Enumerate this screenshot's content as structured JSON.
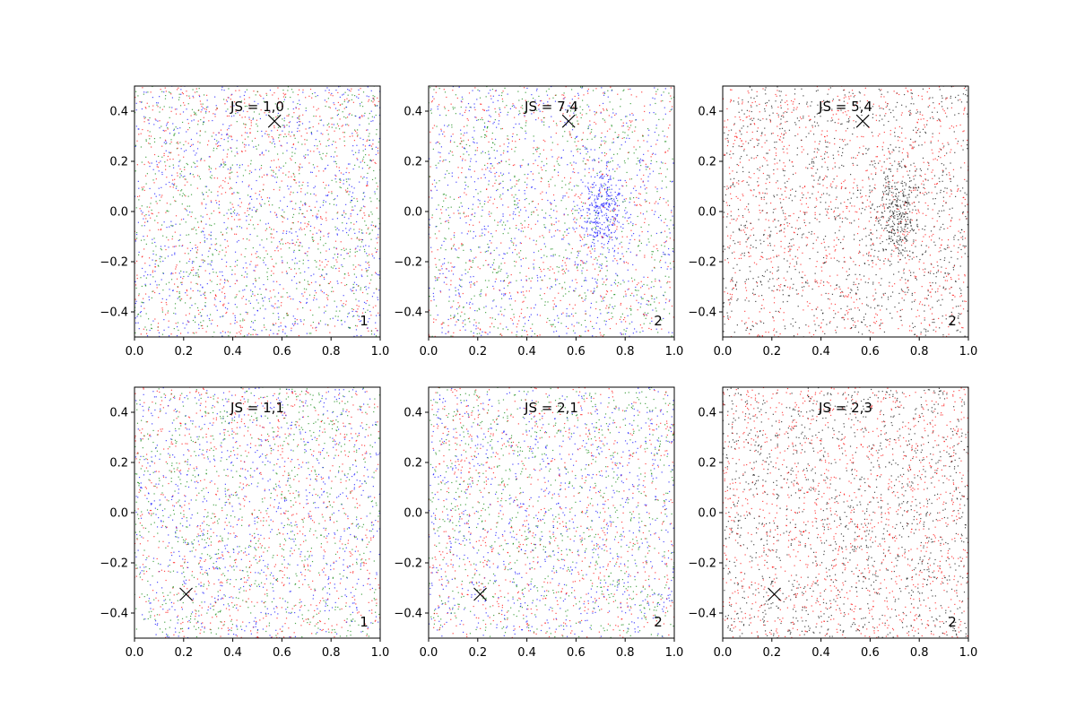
{
  "chart_data": [
    {
      "type": "scatter",
      "title": "JS = 1,0",
      "corner_label": "1",
      "xlim": [
        0.0,
        1.0
      ],
      "ylim": [
        -0.5,
        0.5
      ],
      "x_ticks": [
        "0.0",
        "0.2",
        "0.4",
        "0.6",
        "0.8",
        "1.0"
      ],
      "y_ticks": [
        "0.4",
        "0.2",
        "0.0",
        "−0.2",
        "−0.4"
      ],
      "marker": {
        "x": 0.57,
        "y": 0.36,
        "symbol": "x"
      },
      "series_colors": [
        "#0000ff",
        "#008000",
        "#ff0000"
      ],
      "cluster": null
    },
    {
      "type": "scatter",
      "title": "JS = 7,4",
      "corner_label": "2",
      "xlim": [
        0.0,
        1.0
      ],
      "ylim": [
        -0.5,
        0.5
      ],
      "x_ticks": [
        "0.0",
        "0.2",
        "0.4",
        "0.6",
        "0.8",
        "1.0"
      ],
      "y_ticks": [
        "0.4",
        "0.2",
        "0.0",
        "−0.2",
        "−0.4"
      ],
      "marker": {
        "x": 0.57,
        "y": 0.36,
        "symbol": "x"
      },
      "series_colors": [
        "#0000ff",
        "#008000",
        "#ff0000"
      ],
      "cluster": {
        "x": 0.71,
        "y": 0.0,
        "color": "#0000ff"
      }
    },
    {
      "type": "scatter",
      "title": "JS = 5,4",
      "corner_label": "2",
      "xlim": [
        0.0,
        1.0
      ],
      "ylim": [
        -0.5,
        0.5
      ],
      "x_ticks": [
        "0.0",
        "0.2",
        "0.4",
        "0.6",
        "0.8",
        "1.0"
      ],
      "y_ticks": [
        "0.4",
        "0.2",
        "0.0",
        "−0.2",
        "−0.4"
      ],
      "marker": {
        "x": 0.57,
        "y": 0.36,
        "symbol": "x"
      },
      "series_colors": [
        "#000000",
        "#ff0000"
      ],
      "cluster": {
        "x": 0.71,
        "y": 0.0,
        "color": "#000000"
      }
    },
    {
      "type": "scatter",
      "title": "JS = 1,1",
      "corner_label": "1",
      "xlim": [
        0.0,
        1.0
      ],
      "ylim": [
        -0.5,
        0.5
      ],
      "x_ticks": [
        "0.0",
        "0.2",
        "0.4",
        "0.6",
        "0.8",
        "1.0"
      ],
      "y_ticks": [
        "0.4",
        "0.2",
        "0.0",
        "−0.2",
        "−0.4"
      ],
      "marker": {
        "x": 0.21,
        "y": -0.325,
        "symbol": "x"
      },
      "series_colors": [
        "#0000ff",
        "#008000",
        "#ff0000"
      ],
      "cluster": null
    },
    {
      "type": "scatter",
      "title": "JS = 2,1",
      "corner_label": "2",
      "xlim": [
        0.0,
        1.0
      ],
      "ylim": [
        -0.5,
        0.5
      ],
      "x_ticks": [
        "0.0",
        "0.2",
        "0.4",
        "0.6",
        "0.8",
        "1.0"
      ],
      "y_ticks": [
        "0.4",
        "0.2",
        "0.0",
        "−0.2",
        "−0.4"
      ],
      "marker": {
        "x": 0.21,
        "y": -0.325,
        "symbol": "x"
      },
      "series_colors": [
        "#0000ff",
        "#008000",
        "#ff0000"
      ],
      "cluster": null
    },
    {
      "type": "scatter",
      "title": "JS = 2,3",
      "corner_label": "2",
      "xlim": [
        0.0,
        1.0
      ],
      "ylim": [
        -0.5,
        0.5
      ],
      "x_ticks": [
        "0.0",
        "0.2",
        "0.4",
        "0.6",
        "0.8",
        "1.0"
      ],
      "y_ticks": [
        "0.4",
        "0.2",
        "0.0",
        "−0.2",
        "−0.4"
      ],
      "marker": {
        "x": 0.21,
        "y": -0.325,
        "symbol": "x"
      },
      "series_colors": [
        "#000000",
        "#ff0000"
      ],
      "cluster": null
    }
  ]
}
